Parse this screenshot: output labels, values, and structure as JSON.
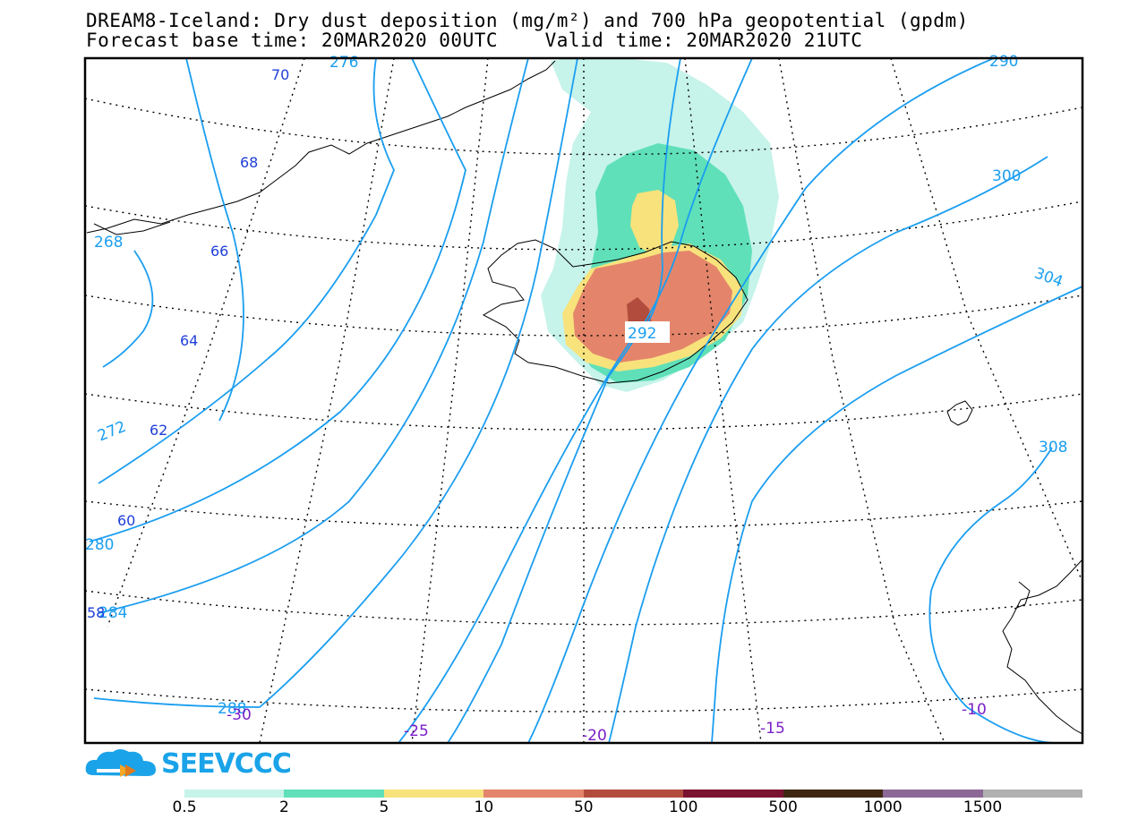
{
  "header": {
    "line1": "DREAM8-Iceland: Dry dust deposition (mg/m²) and 700 hPa geopotential (gpdm)",
    "line2": "Forecast base time: 20MAR2020 00UTC    Valid time: 20MAR2020 21UTC"
  },
  "map": {
    "geopotential_contours": [
      "276",
      "290",
      "300",
      "304",
      "308",
      "268",
      "272",
      "280",
      "284",
      "288",
      "292"
    ],
    "latitude_labels": [
      "70",
      "68",
      "66",
      "64",
      "62",
      "60",
      "58"
    ],
    "longitude_labels": [
      "-30",
      "-25",
      "-20",
      "-15",
      "-10"
    ],
    "colors": {
      "contour": "#1b9ef0",
      "lat_label": "#1f3fd9",
      "lon_label": "#7a1fc8"
    }
  },
  "logo": {
    "text": "SEEVCCC",
    "icon": "cloud-arrow-icon"
  },
  "legend": {
    "ticks": [
      "0.5",
      "2",
      "5",
      "10",
      "50",
      "100",
      "500",
      "1000",
      "1500"
    ],
    "colors": [
      "#c6f3ea",
      "#5fe0b8",
      "#f8e27c",
      "#e4856b",
      "#b24d3e",
      "#7a1232",
      "#3e2812",
      "#8b6896",
      "#b0b0b0"
    ]
  }
}
